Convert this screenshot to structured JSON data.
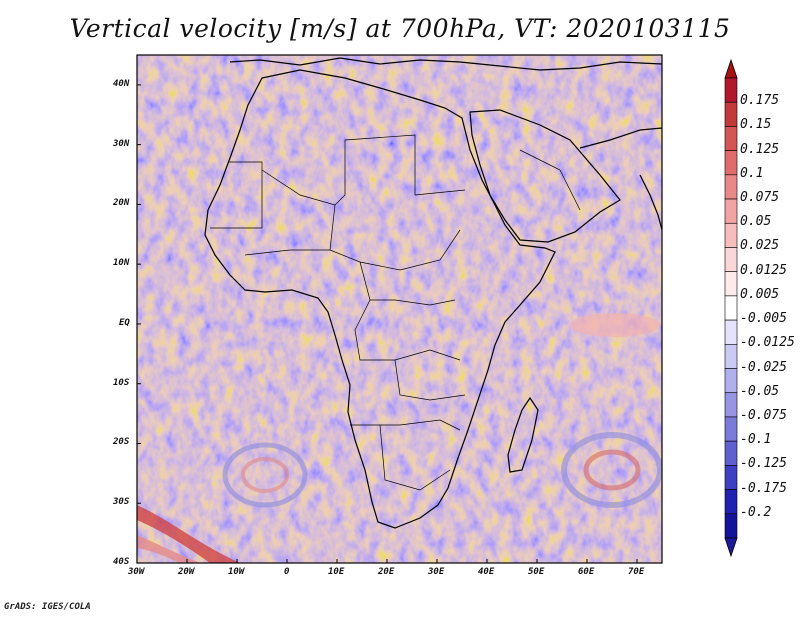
{
  "title": "Vertical velocity [m/s] at 700hPa, VT: 2020103115",
  "footer": "GrADS: IGES/COLA",
  "map": {
    "lon_labels": [
      "30W",
      "20W",
      "10W",
      "0",
      "10E",
      "20E",
      "30E",
      "40E",
      "50E",
      "60E",
      "70E"
    ],
    "lat_labels": [
      "40N",
      "30N",
      "20N",
      "10N",
      "EQ",
      "10S",
      "20S",
      "30S",
      "40S"
    ],
    "lon_range": [
      -30,
      75
    ],
    "lat_range": [
      -40,
      45
    ]
  },
  "colorbar": {
    "labels": [
      "0.175",
      "0.15",
      "0.125",
      "0.1",
      "0.075",
      "0.05",
      "0.025",
      "0.0125",
      "0.005",
      "-0.005",
      "-0.0125",
      "-0.025",
      "-0.05",
      "-0.075",
      "-0.1",
      "-0.125",
      "-0.175",
      "-0.2"
    ],
    "colors": [
      "#b2182b",
      "#c23a3a",
      "#d35555",
      "#e06c6c",
      "#ea8787",
      "#f2a3a3",
      "#f7bdbd",
      "#fbd6d6",
      "#fdeaea",
      "#ffffff",
      "#e3e3fb",
      "#cacaf4",
      "#b0b0ec",
      "#9696e4",
      "#7b7bda",
      "#5f5fcf",
      "#3f3fc2",
      "#2222b0",
      "#14149a"
    ],
    "top_color": "#a51212",
    "bottom_color": "#1a1a9a"
  }
}
